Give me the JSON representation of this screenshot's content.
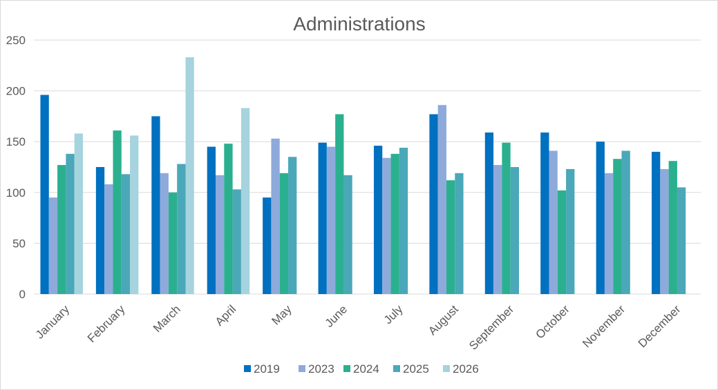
{
  "chart_data": {
    "type": "bar",
    "title": "Administrations",
    "xlabel": "",
    "ylabel": "",
    "ylim": [
      0,
      250
    ],
    "yticks": [
      0,
      50,
      100,
      150,
      200,
      250
    ],
    "grid": true,
    "legend_position": "bottom",
    "categories": [
      "January",
      "February",
      "March",
      "April",
      "May",
      "June",
      "July",
      "August",
      "September",
      "October",
      "November",
      "December"
    ],
    "series": [
      {
        "name": "2019",
        "color": "#0070c0",
        "values": [
          196,
          125,
          175,
          145,
          95,
          149,
          146,
          177,
          159,
          159,
          150,
          140
        ]
      },
      {
        "name": "2023",
        "color": "#8eaadb",
        "values": [
          95,
          108,
          119,
          117,
          153,
          145,
          134,
          186,
          127,
          141,
          119,
          123
        ]
      },
      {
        "name": "2024",
        "color": "#2bb08f",
        "values": [
          127,
          161,
          100,
          148,
          119,
          177,
          138,
          112,
          149,
          102,
          133,
          131
        ]
      },
      {
        "name": "2025",
        "color": "#4aa8b8",
        "values": [
          138,
          118,
          128,
          103,
          135,
          117,
          144,
          119,
          125,
          123,
          141,
          105
        ]
      },
      {
        "name": "2026",
        "color": "#a5d3de",
        "values": [
          158,
          156,
          233,
          183,
          null,
          null,
          null,
          null,
          null,
          null,
          null,
          null
        ]
      }
    ]
  }
}
